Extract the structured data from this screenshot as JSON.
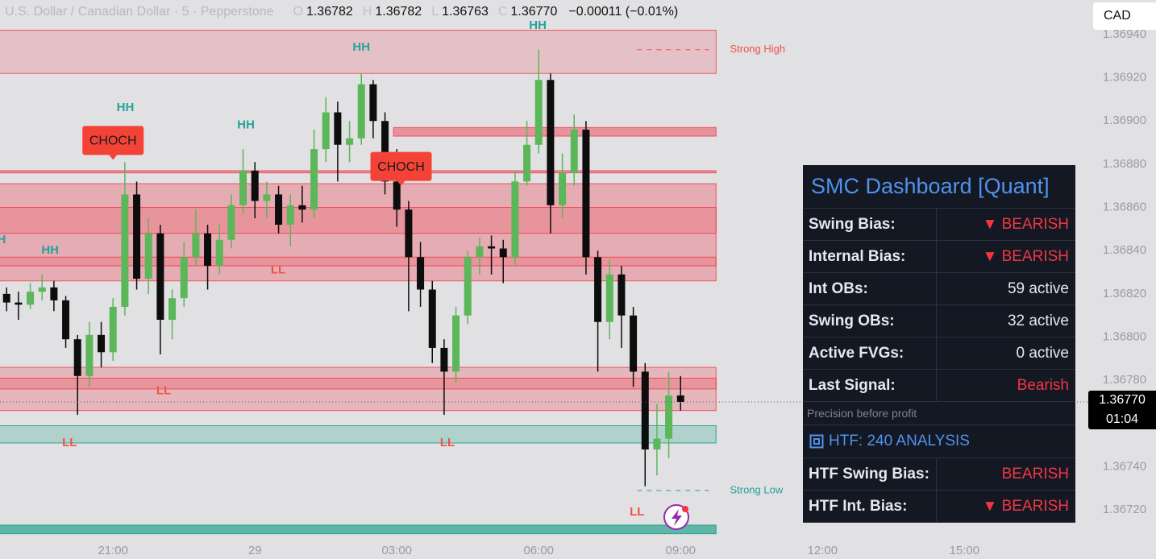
{
  "header": {
    "symbol": "U.S. Dollar / Canadian Dollar · 5 · Pepperstone",
    "ohlc": [
      {
        "key": "O",
        "value": "1.36782"
      },
      {
        "key": "H",
        "value": "1.36782"
      },
      {
        "key": "L",
        "value": "1.36763"
      },
      {
        "key": "C",
        "value": "1.36770"
      }
    ],
    "change": "−0.00011 (−0.01%)",
    "currency": "CAD"
  },
  "chart_data": {
    "type": "candlestick",
    "xlim": [
      -2.39,
      20.62
    ],
    "ylim": [
      1.36707,
      1.36956
    ],
    "xticks": [
      {
        "value": 0,
        "label": "21:00"
      },
      {
        "value": 3,
        "label": "29"
      },
      {
        "value": 6,
        "label": "03:00"
      },
      {
        "value": 9,
        "label": "06:00"
      },
      {
        "value": 12,
        "label": "09:00"
      },
      {
        "value": 15,
        "label": "12:00"
      },
      {
        "value": 18,
        "label": "15:00"
      }
    ],
    "yticks": [
      {
        "value": 1.3672,
        "label": "1.36720"
      },
      {
        "value": 1.3674,
        "label": "1.36740"
      },
      {
        "value": 1.3676,
        "label": "1.36760"
      },
      {
        "value": 1.3678,
        "label": "1.36780"
      },
      {
        "value": 1.368,
        "label": "1.36800"
      },
      {
        "value": 1.3682,
        "label": "1.36820"
      },
      {
        "value": 1.3684,
        "label": "1.36840"
      },
      {
        "value": 1.3686,
        "label": "1.36860"
      },
      {
        "value": 1.3688,
        "label": "1.36880"
      },
      {
        "value": 1.369,
        "label": "1.36900"
      },
      {
        "value": 1.3692,
        "label": "1.36920"
      },
      {
        "value": 1.3694,
        "label": "1.36940"
      }
    ],
    "grid": false,
    "up_color": "#5cb65a",
    "down_color": "#0d0d0d",
    "x": [
      -2.25,
      -2,
      -1.75,
      -1.5,
      -1.25,
      -1,
      -0.75,
      -0.5,
      -0.25,
      0,
      0.25,
      0.5,
      0.75,
      1,
      1.25,
      1.5,
      1.75,
      2,
      2.25,
      2.5,
      2.75,
      3,
      3.25,
      3.5,
      3.75,
      4,
      4.25,
      4.5,
      4.75,
      5,
      5.25,
      5.5,
      5.75,
      6,
      6.25,
      6.5,
      6.75,
      7,
      7.25,
      7.5,
      7.75,
      8,
      8.25,
      8.5,
      8.75,
      9,
      9.25,
      9.5,
      9.75,
      10,
      10.25,
      10.5,
      10.75,
      11,
      11.25,
      11.5,
      11.75,
      12
    ],
    "candles": [
      [
        1.3682,
        1.36823,
        1.36812,
        1.36816
      ],
      [
        1.36816,
        1.36821,
        1.36808,
        1.36815
      ],
      [
        1.36815,
        1.36825,
        1.36813,
        1.36821
      ],
      [
        1.36821,
        1.36829,
        1.36817,
        1.36823
      ],
      [
        1.36823,
        1.36826,
        1.36812,
        1.36817
      ],
      [
        1.36817,
        1.36819,
        1.36795,
        1.36799
      ],
      [
        1.36799,
        1.36801,
        1.36764,
        1.36782
      ],
      [
        1.36782,
        1.36807,
        1.36777,
        1.36801
      ],
      [
        1.36801,
        1.36807,
        1.36786,
        1.36793
      ],
      [
        1.36793,
        1.36818,
        1.36789,
        1.36814
      ],
      [
        1.36814,
        1.36881,
        1.3681,
        1.36866
      ],
      [
        1.36866,
        1.36872,
        1.36822,
        1.36827
      ],
      [
        1.36827,
        1.36855,
        1.3682,
        1.36848
      ],
      [
        1.36848,
        1.36852,
        1.36792,
        1.36808
      ],
      [
        1.36808,
        1.36822,
        1.36799,
        1.36818
      ],
      [
        1.36818,
        1.36844,
        1.36814,
        1.36837
      ],
      [
        1.36837,
        1.36859,
        1.36833,
        1.36848
      ],
      [
        1.36848,
        1.36852,
        1.36822,
        1.36833
      ],
      [
        1.36833,
        1.36852,
        1.36829,
        1.36845
      ],
      [
        1.36845,
        1.36866,
        1.36841,
        1.36861
      ],
      [
        1.36861,
        1.36887,
        1.36857,
        1.36877
      ],
      [
        1.36877,
        1.36881,
        1.36855,
        1.36863
      ],
      [
        1.36863,
        1.36872,
        1.36855,
        1.36866
      ],
      [
        1.36866,
        1.3687,
        1.36848,
        1.36852
      ],
      [
        1.36852,
        1.36866,
        1.36842,
        1.36861
      ],
      [
        1.36861,
        1.3687,
        1.36853,
        1.36859
      ],
      [
        1.36859,
        1.36896,
        1.36855,
        1.36887
      ],
      [
        1.36887,
        1.36911,
        1.36881,
        1.36904
      ],
      [
        1.36904,
        1.36909,
        1.36872,
        1.36889
      ],
      [
        1.36889,
        1.369,
        1.36881,
        1.36892
      ],
      [
        1.36892,
        1.36922,
        1.36889,
        1.36917
      ],
      [
        1.36917,
        1.36919,
        1.36892,
        1.369
      ],
      [
        1.369,
        1.36904,
        1.36866,
        1.36872
      ],
      [
        1.36872,
        1.36887,
        1.36851,
        1.36859
      ],
      [
        1.36859,
        1.36863,
        1.36812,
        1.36837
      ],
      [
        1.36837,
        1.36844,
        1.36814,
        1.36822
      ],
      [
        1.36822,
        1.36826,
        1.36788,
        1.36795
      ],
      [
        1.36795,
        1.36799,
        1.36764,
        1.36784
      ],
      [
        1.36784,
        1.36814,
        1.36779,
        1.3681
      ],
      [
        1.3681,
        1.3684,
        1.36806,
        1.36837
      ],
      [
        1.36837,
        1.36846,
        1.36829,
        1.36842
      ],
      [
        1.36842,
        1.36847,
        1.36829,
        1.36841
      ],
      [
        1.36841,
        1.36845,
        1.36825,
        1.36837
      ],
      [
        1.36837,
        1.36877,
        1.36833,
        1.36872
      ],
      [
        1.36872,
        1.369,
        1.3687,
        1.36889
      ],
      [
        1.36889,
        1.36933,
        1.36885,
        1.36919
      ],
      [
        1.36919,
        1.36922,
        1.36848,
        1.36861
      ],
      [
        1.36861,
        1.36885,
        1.36855,
        1.36876
      ],
      [
        1.36876,
        1.36903,
        1.3687,
        1.36896
      ],
      [
        1.36896,
        1.369,
        1.36829,
        1.36837
      ],
      [
        1.36837,
        1.3684,
        1.36784,
        1.36807
      ],
      [
        1.36807,
        1.36836,
        1.36799,
        1.36829
      ],
      [
        1.36829,
        1.36833,
        1.36795,
        1.3681
      ],
      [
        1.3681,
        1.36814,
        1.36777,
        1.36784
      ],
      [
        1.36784,
        1.36788,
        1.36731,
        1.36748
      ],
      [
        1.36748,
        1.36769,
        1.36736,
        1.36753
      ],
      [
        1.36753,
        1.36784,
        1.36744,
        1.36773
      ],
      [
        1.36773,
        1.36782,
        1.36766,
        1.3677
      ]
    ],
    "zones": [
      {
        "x": [
          -3,
          12.75
        ],
        "y": [
          1.36922,
          1.36942
        ],
        "color": "#f23645",
        "opacity": 0.18
      },
      {
        "x": [
          5.93,
          12.75
        ],
        "y": [
          1.36893,
          1.36897
        ],
        "color": "#f23645",
        "opacity": 0.45
      },
      {
        "x": [
          -3,
          12.75
        ],
        "y": [
          1.36876,
          1.36877
        ],
        "color": "#f23645",
        "opacity": 0.45
      },
      {
        "x": [
          -3,
          12.75
        ],
        "y": [
          1.36826,
          1.36871
        ],
        "color": "#f23645",
        "opacity": 0.3
      },
      {
        "x": [
          -3,
          12.75
        ],
        "y": [
          1.36848,
          1.3686
        ],
        "color": "#f23645",
        "opacity": 0.2
      },
      {
        "x": [
          -3,
          12.75
        ],
        "y": [
          1.36833,
          1.36837
        ],
        "color": "#f23645",
        "opacity": 0.2
      },
      {
        "x": [
          -3,
          12.75
        ],
        "y": [
          1.36766,
          1.36786
        ],
        "color": "#f23645",
        "opacity": 0.25
      },
      {
        "x": [
          -3,
          12.75
        ],
        "y": [
          1.36776,
          1.36781
        ],
        "color": "#f23645",
        "opacity": 0.25
      },
      {
        "x": [
          -3,
          12.75
        ],
        "y": [
          1.36751,
          1.36759
        ],
        "color": "#089981",
        "opacity": 0.22
      },
      {
        "x": [
          -3,
          12.75
        ],
        "y": [
          1.36709,
          1.36713
        ],
        "color": "#089981",
        "opacity": 0.6
      }
    ],
    "labels": [
      {
        "text": "HH",
        "x": -2.45,
        "y": 1.36845,
        "color": "#22a39a"
      },
      {
        "text": "HH",
        "x": -1.33,
        "y": 1.3684,
        "color": "#22a39a"
      },
      {
        "text": "HH",
        "x": 0.26,
        "y": 1.36906,
        "color": "#22a39a"
      },
      {
        "text": "HH",
        "x": 2.81,
        "y": 1.36898,
        "color": "#22a39a"
      },
      {
        "text": "HH",
        "x": 5.25,
        "y": 1.36934,
        "color": "#22a39a"
      },
      {
        "text": "HH",
        "x": 8.98,
        "y": 1.36944,
        "color": "#22a39a"
      },
      {
        "text": "LL",
        "x": 3.49,
        "y": 1.36831,
        "color": "#f0524a"
      },
      {
        "text": "LL",
        "x": 1.07,
        "y": 1.36775,
        "color": "#f0524a"
      },
      {
        "text": "LL",
        "x": -0.92,
        "y": 1.36751,
        "color": "#f0524a"
      },
      {
        "text": "LL",
        "x": 7.07,
        "y": 1.36751,
        "color": "#f0524a"
      },
      {
        "text": "LL",
        "x": 11.08,
        "y": 1.36719,
        "color": "#f0524a"
      },
      {
        "text": "CHOCH",
        "x": 0,
        "y": 1.36891,
        "color": "#1a1a1a",
        "box_color": "#f44336"
      },
      {
        "text": "CHOCH",
        "x": 6.09,
        "y": 1.36879,
        "color": "#1a1a1a",
        "box_color": "#f44336"
      }
    ],
    "levels": [
      {
        "text": "Strong High",
        "y": 1.36933,
        "x": [
          11.08,
          12.6
        ],
        "color": "#f0524a"
      },
      {
        "text": "Strong Low",
        "y": 1.36729,
        "x": [
          11.08,
          12.6
        ],
        "color": "#22a39a"
      }
    ],
    "price": {
      "value": 1.3677,
      "label": "1.36770",
      "countdown": "01:04"
    }
  },
  "dashboard": {
    "title": "SMC Dashboard [Quant]",
    "rows": [
      {
        "label": "Swing Bias:",
        "value": "▼ BEARISH",
        "color": "#f23645"
      },
      {
        "label": "Internal Bias:",
        "value": "▼ BEARISH",
        "color": "#f23645"
      },
      {
        "label": "Int OBs:",
        "value": "59 active",
        "color": "#e6e8ee"
      },
      {
        "label": "Swing OBs:",
        "value": "32 active",
        "color": "#e6e8ee"
      },
      {
        "label": "Active FVGs:",
        "value": "0 active",
        "color": "#e6e8ee"
      },
      {
        "label": "Last Signal:",
        "value": "Bearish",
        "color": "#f23645"
      }
    ],
    "note": "Precision before profit",
    "section": "HTF: 240 ANALYSIS",
    "htf_rows": [
      {
        "label": "HTF Swing Bias:",
        "value": "BEARISH",
        "color": "#f23645"
      },
      {
        "label": "HTF Int. Bias:",
        "value": "▼ BEARISH",
        "color": "#f23645"
      }
    ]
  }
}
